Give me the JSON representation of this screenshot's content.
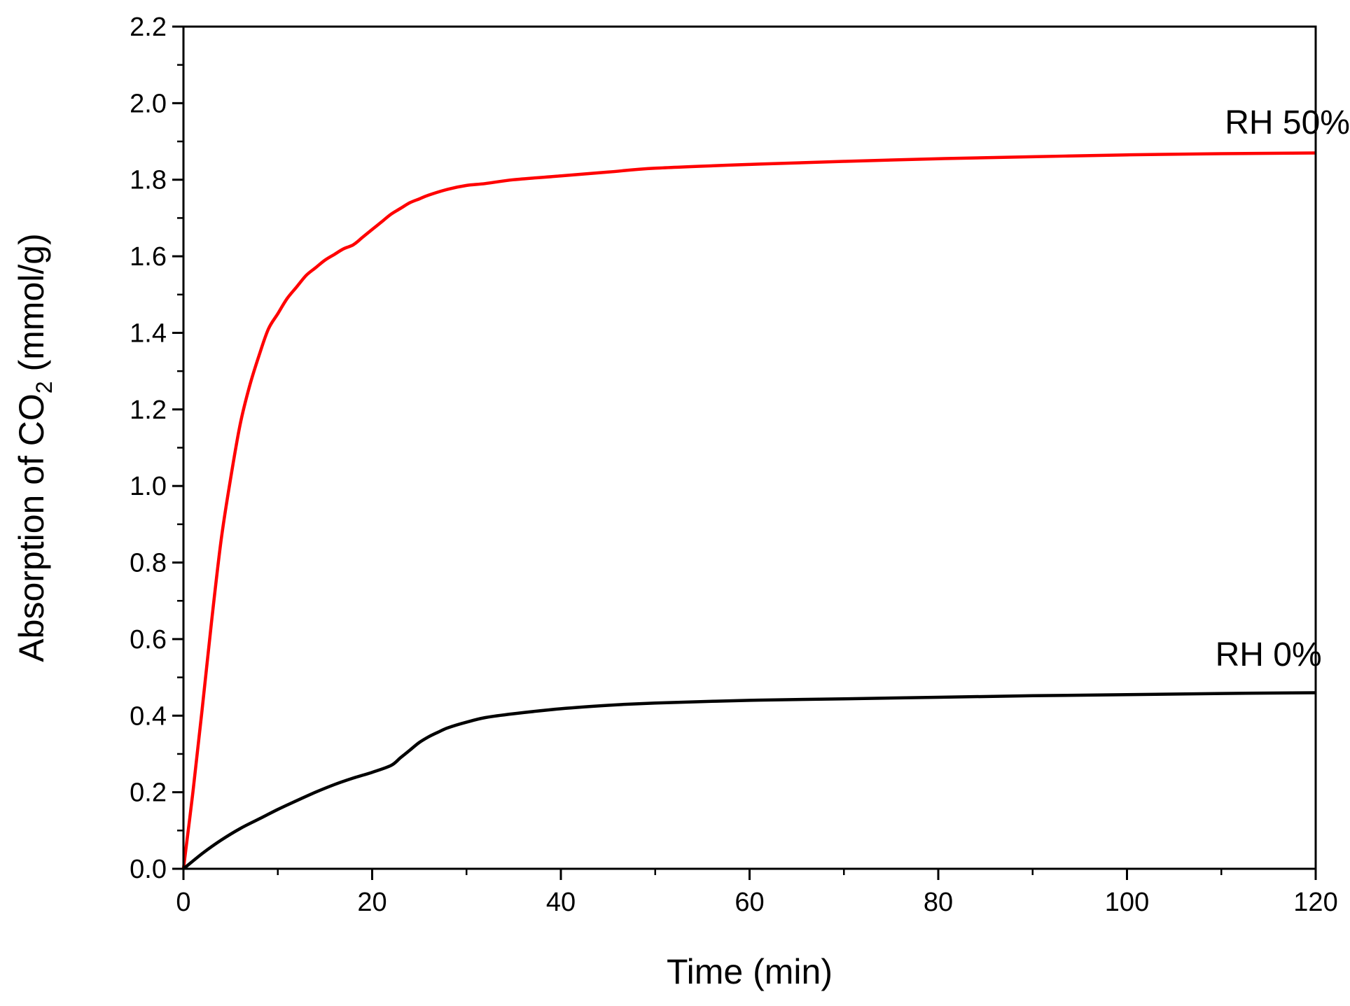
{
  "chart_data": {
    "type": "line",
    "title": "",
    "xlabel": "Time (min)",
    "ylabel": {
      "prefix": "Absorption of CO",
      "subscript": "2",
      "suffix": " (mmol/g)"
    },
    "xlim": [
      0,
      120
    ],
    "ylim": [
      0,
      2.2
    ],
    "x_ticks": [
      "0",
      "20",
      "40",
      "60",
      "80",
      "100",
      "120"
    ],
    "y_ticks": [
      "0.0",
      "0.2",
      "0.4",
      "0.6",
      "0.8",
      "1.0",
      "1.2",
      "1.4",
      "1.6",
      "1.8",
      "2.0",
      "2.2"
    ],
    "grid": false,
    "legend": "none",
    "series": [
      {
        "name": "RH 50%",
        "color": "#ff0000",
        "x": [
          0,
          1,
          2,
          3,
          4,
          5,
          6,
          7,
          8,
          9,
          10,
          11,
          12,
          13,
          14,
          15,
          16,
          17,
          18,
          19,
          20,
          21,
          22,
          23,
          24,
          25,
          26,
          28,
          30,
          32,
          35,
          40,
          45,
          50,
          60,
          70,
          80,
          90,
          100,
          110,
          120
        ],
        "y": [
          0,
          0.2,
          0.42,
          0.65,
          0.86,
          1.02,
          1.16,
          1.26,
          1.34,
          1.41,
          1.45,
          1.49,
          1.52,
          1.55,
          1.57,
          1.59,
          1.605,
          1.62,
          1.63,
          1.65,
          1.67,
          1.69,
          1.71,
          1.725,
          1.74,
          1.75,
          1.76,
          1.775,
          1.785,
          1.79,
          1.8,
          1.81,
          1.82,
          1.83,
          1.84,
          1.848,
          1.855,
          1.86,
          1.865,
          1.868,
          1.87
        ]
      },
      {
        "name": "RH 0%",
        "color": "#000000",
        "x": [
          0,
          2,
          4,
          6,
          8,
          10,
          12,
          14,
          16,
          18,
          20,
          22,
          23,
          24,
          25,
          26,
          27,
          28,
          30,
          32,
          35,
          40,
          45,
          50,
          60,
          70,
          80,
          90,
          100,
          110,
          120
        ],
        "y": [
          0,
          0.04,
          0.075,
          0.105,
          0.13,
          0.155,
          0.178,
          0.2,
          0.22,
          0.237,
          0.252,
          0.27,
          0.29,
          0.31,
          0.33,
          0.345,
          0.357,
          0.368,
          0.383,
          0.395,
          0.405,
          0.418,
          0.427,
          0.433,
          0.44,
          0.444,
          0.448,
          0.452,
          0.455,
          0.458,
          0.46
        ]
      }
    ],
    "annotations": [
      {
        "text": "RH 50%",
        "x": 117,
        "y": 1.92
      },
      {
        "text": "RH 0%",
        "x": 115,
        "y": 0.53
      }
    ]
  }
}
